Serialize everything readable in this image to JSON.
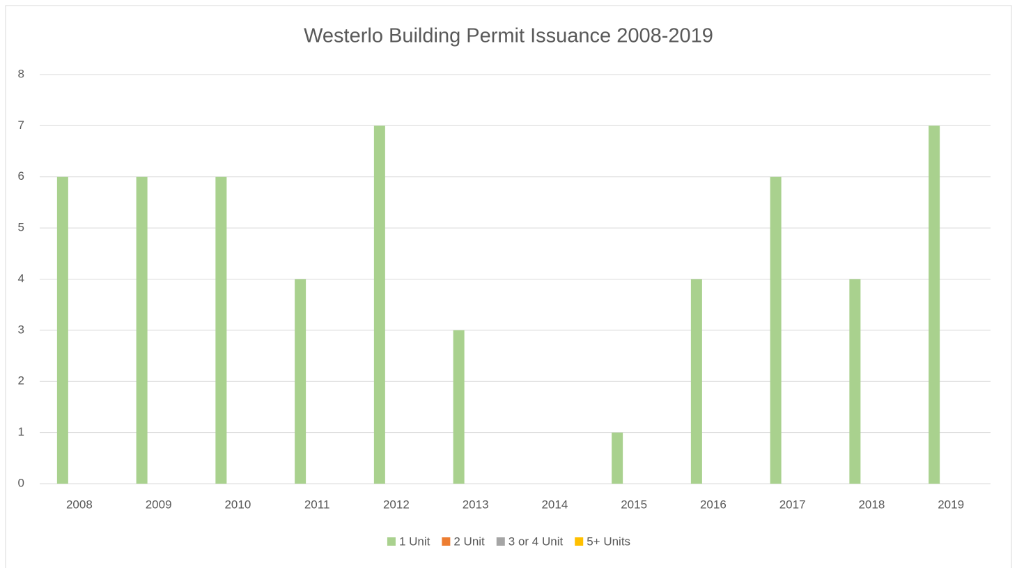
{
  "chart_data": {
    "type": "bar",
    "title": "Westerlo Building Permit Issuance 2008-2019",
    "categories": [
      "2008",
      "2009",
      "2010",
      "2011",
      "2012",
      "2013",
      "2014",
      "2015",
      "2016",
      "2017",
      "2018",
      "2019"
    ],
    "series": [
      {
        "name": "1 Unit",
        "color": "#a9d18e",
        "values": [
          6,
          6,
          6,
          4,
          7,
          3,
          0,
          1,
          4,
          6,
          4,
          7
        ]
      },
      {
        "name": "2 Unit",
        "color": "#ed7d31",
        "values": [
          0,
          0,
          0,
          0,
          0,
          0,
          0,
          0,
          0,
          0,
          0,
          0
        ]
      },
      {
        "name": "3 or 4 Unit",
        "color": "#a5a5a5",
        "values": [
          0,
          0,
          0,
          0,
          0,
          0,
          0,
          0,
          0,
          0,
          0,
          0
        ]
      },
      {
        "name": "5+ Units",
        "color": "#ffc000",
        "values": [
          0,
          0,
          0,
          0,
          0,
          0,
          0,
          0,
          0,
          0,
          0,
          0
        ]
      }
    ],
    "ylim": [
      0,
      8
    ],
    "yticks": [
      0,
      1,
      2,
      3,
      4,
      5,
      6,
      7,
      8
    ],
    "grid": true,
    "legend": "bottom"
  }
}
